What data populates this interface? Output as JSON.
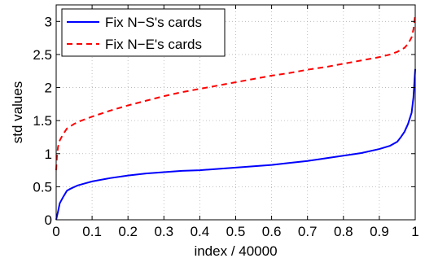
{
  "chart_data": {
    "type": "line",
    "title": "",
    "xlabel": "index / 40000",
    "ylabel": "std values",
    "xlim": [
      0,
      1
    ],
    "ylim": [
      0,
      3.25
    ],
    "xticks": [
      0,
      0.1,
      0.2,
      0.3,
      0.4,
      0.5,
      0.6,
      0.7,
      0.8,
      0.9,
      1
    ],
    "xtick_labels": [
      "0",
      "0.1",
      "0.2",
      "0.3",
      "0.4",
      "0.5",
      "0.6",
      "0.7",
      "0.8",
      "0.9",
      "1"
    ],
    "yticks": [
      0,
      0.5,
      1,
      1.5,
      2,
      2.5,
      3
    ],
    "ytick_labels": [
      "0",
      "0.5",
      "1",
      "1.5",
      "2",
      "2.5",
      "3"
    ],
    "grid": true,
    "legend_position": "top-left",
    "series": [
      {
        "name": "Fix N−S's cards",
        "color": "#0000ff",
        "style": "solid",
        "x": [
          0,
          0.002,
          0.005,
          0.01,
          0.02,
          0.03,
          0.04,
          0.06,
          0.08,
          0.1,
          0.15,
          0.2,
          0.25,
          0.3,
          0.35,
          0.4,
          0.45,
          0.5,
          0.55,
          0.6,
          0.65,
          0.7,
          0.75,
          0.8,
          0.85,
          0.9,
          0.93,
          0.95,
          0.96,
          0.97,
          0.98,
          0.99,
          0.995,
          1.0
        ],
        "y": [
          0.0,
          0.05,
          0.12,
          0.25,
          0.35,
          0.44,
          0.47,
          0.52,
          0.55,
          0.58,
          0.63,
          0.67,
          0.7,
          0.72,
          0.74,
          0.75,
          0.77,
          0.79,
          0.81,
          0.83,
          0.86,
          0.89,
          0.93,
          0.97,
          1.01,
          1.07,
          1.12,
          1.18,
          1.25,
          1.33,
          1.45,
          1.62,
          1.85,
          2.28
        ]
      },
      {
        "name": "Fix N−E's cards",
        "color": "#ff0000",
        "style": "dashed",
        "x": [
          0,
          0.002,
          0.005,
          0.01,
          0.02,
          0.03,
          0.05,
          0.07,
          0.1,
          0.15,
          0.2,
          0.25,
          0.3,
          0.35,
          0.4,
          0.45,
          0.5,
          0.55,
          0.6,
          0.65,
          0.7,
          0.75,
          0.8,
          0.85,
          0.9,
          0.93,
          0.95,
          0.97,
          0.98,
          0.99,
          0.995,
          1.0
        ],
        "y": [
          0.75,
          0.95,
          1.1,
          1.2,
          1.3,
          1.38,
          1.45,
          1.5,
          1.56,
          1.65,
          1.73,
          1.8,
          1.87,
          1.93,
          1.98,
          2.03,
          2.08,
          2.13,
          2.18,
          2.22,
          2.27,
          2.31,
          2.36,
          2.41,
          2.46,
          2.5,
          2.54,
          2.6,
          2.66,
          2.76,
          2.88,
          3.1
        ]
      }
    ]
  }
}
